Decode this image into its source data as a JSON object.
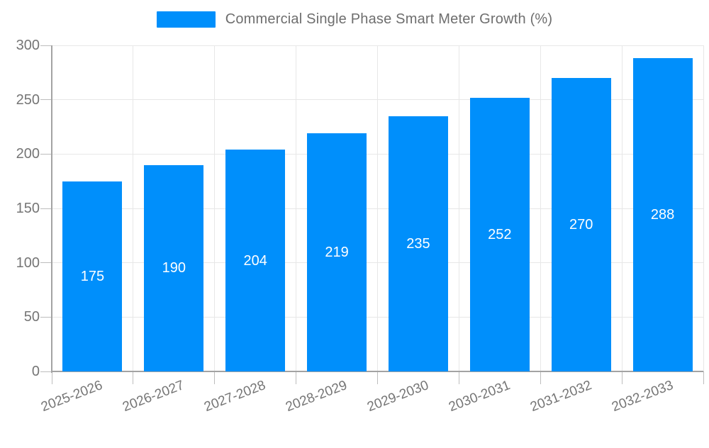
{
  "chart_data": {
    "type": "bar",
    "title": "Commercial Single Phase Smart Meter Growth (%)",
    "categories": [
      "2025-2026",
      "2026-2027",
      "2027-2028",
      "2028-2029",
      "2029-2030",
      "2030-2031",
      "2031-2032",
      "2032-2033"
    ],
    "values": [
      175,
      190,
      204,
      219,
      235,
      252,
      270,
      288
    ],
    "series": [
      {
        "name": "Commercial Single Phase Smart Meter Growth (%)",
        "values": [
          175,
          190,
          204,
          219,
          235,
          252,
          270,
          288
        ]
      }
    ],
    "xlabel": "",
    "ylabel": "",
    "ylim": [
      0,
      300
    ],
    "yticks": [
      0,
      50,
      100,
      150,
      200,
      250,
      300
    ],
    "grid": true,
    "legend_position": "top",
    "bar_color": "#008FFB",
    "value_label_color": "#ffffff",
    "axis_text_color": "#757575"
  },
  "legend": {
    "label": "Commercial Single Phase Smart Meter Growth (%)",
    "swatch_color": "#008FFB"
  }
}
